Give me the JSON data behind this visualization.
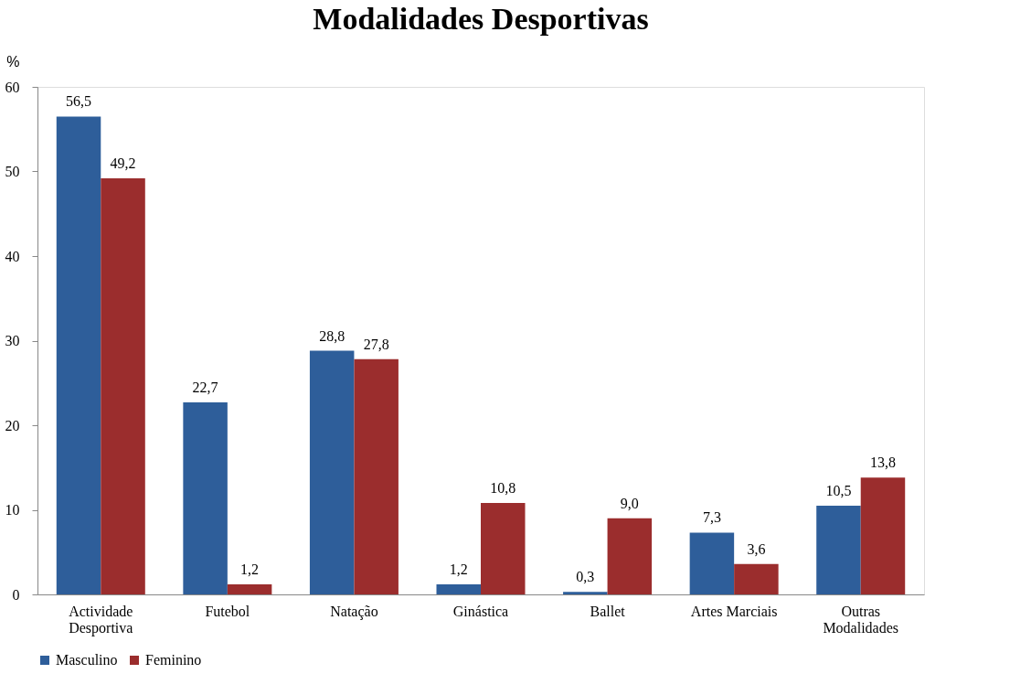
{
  "chart_data": {
    "type": "bar",
    "title": "Modalidades Desportivas",
    "ylabel": "%",
    "categories": [
      "Actividade\nDesportiva",
      "Futebol",
      "Natação",
      "Ginástica",
      "Ballet",
      "Artes Marciais",
      "Outras\nModalidades"
    ],
    "series": [
      {
        "name": "Masculino",
        "color": "#2e5e9a",
        "values": [
          56.5,
          22.7,
          28.8,
          1.2,
          0.3,
          7.3,
          10.5
        ]
      },
      {
        "name": "Feminino",
        "color": "#9b2d2d",
        "values": [
          49.2,
          1.2,
          27.8,
          10.8,
          9.0,
          3.6,
          13.8
        ]
      }
    ],
    "value_labels": [
      [
        "56,5",
        "22,7",
        "28,8",
        "1,2",
        "0,3",
        "7,3",
        "10,5"
      ],
      [
        "49,2",
        "1,2",
        "27,8",
        "10,8",
        "9,0",
        "3,6",
        "13,8"
      ]
    ],
    "ylim": [
      0,
      60
    ],
    "yticks": [
      0,
      10,
      20,
      30,
      40,
      50,
      60
    ],
    "grid": false,
    "legend": "bottom"
  }
}
